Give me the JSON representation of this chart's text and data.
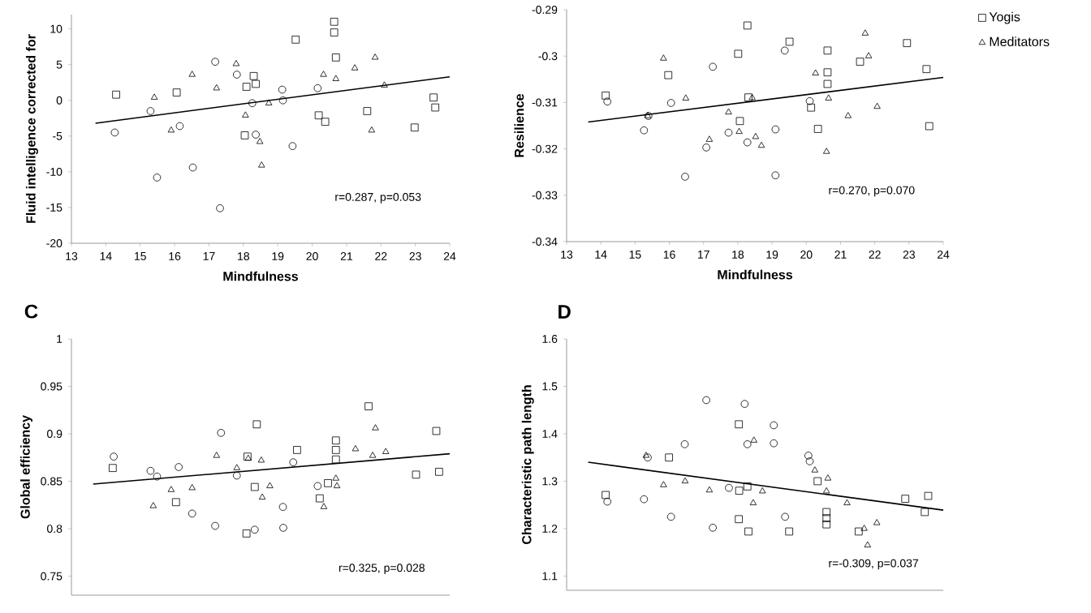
{
  "chart_data": [
    {
      "type": "scatter",
      "xlabel": "Mindfulness",
      "ylabel": "Fluid intelligence corrected for",
      "xlim": [
        13,
        24
      ],
      "ylim": [
        -20,
        12
      ],
      "xticks": [
        13,
        14,
        15,
        16,
        17,
        18,
        19,
        20,
        21,
        22,
        23,
        24
      ],
      "yticks": [
        -20,
        -15,
        -10,
        -5,
        0,
        5,
        10
      ],
      "annotations": [
        "r=0.287, p=0.053"
      ],
      "series": [
        {
          "marker": "square",
          "color": "#000000",
          "x": [
            14.3,
            16.06,
            19.52,
            20.64,
            20.64,
            20.69,
            18.3,
            18.36,
            18.09,
            18.04,
            20.19,
            20.38,
            21.6,
            22.98,
            23.53,
            23.58
          ],
          "values": [
            0.8,
            1.1,
            8.5,
            11,
            9.5,
            6,
            3.4,
            2.3,
            1.9,
            -4.9,
            -2.1,
            -3.0,
            -1.5,
            -3.8,
            0.4,
            -1.0
          ]
        },
        {
          "marker": "triangle",
          "color": "#000000",
          "x": [
            15.41,
            15.9,
            16.51,
            17.22,
            17.79,
            18.06,
            18.74,
            18.48,
            18.53,
            20.33,
            20.69,
            21.24,
            21.83,
            21.73,
            22.1
          ],
          "values": [
            0.4,
            -4.2,
            3.6,
            1.7,
            5.1,
            -2.1,
            -0.4,
            -5.8,
            -9.1,
            3.6,
            3.0,
            4.5,
            6.0,
            -4.2,
            2.1
          ]
        },
        {
          "marker": "circle",
          "color": "#000000",
          "x": [
            14.26,
            15.3,
            15.49,
            16.15,
            16.53,
            17.18,
            17.32,
            17.81,
            18.26,
            18.36,
            19.13,
            19.15,
            19.43,
            20.16
          ],
          "values": [
            -4.5,
            -1.5,
            -10.8,
            -3.6,
            -9.4,
            5.4,
            -15.1,
            3.6,
            -0.4,
            -4.8,
            1.5,
            0,
            -6.4,
            1.7
          ]
        },
        {
          "type": "line",
          "marker": "none",
          "line_style": "solid",
          "color": "#000000",
          "x": [
            13.7,
            24
          ],
          "values": [
            -3.2,
            3.3
          ]
        }
      ]
    },
    {
      "type": "scatter",
      "xlabel": "Mindfulness",
      "ylabel": "Resilience",
      "xlim": [
        13,
        24
      ],
      "ylim": [
        -0.34,
        -0.29
      ],
      "xticks": [
        13,
        14,
        15,
        16,
        17,
        18,
        19,
        20,
        21,
        22,
        23,
        24
      ],
      "yticks": [
        -0.34,
        -0.33,
        -0.32,
        -0.31,
        -0.3,
        -0.29
      ],
      "annotations": [
        "r=0.270, p=0.070"
      ],
      "legend": "right",
      "series": [
        {
          "name": "Yogis",
          "marker": "square",
          "color": "#000000",
          "x": [
            14.14,
            15.97,
            18.01,
            18.28,
            19.51,
            20.62,
            20.62,
            20.62,
            21.57,
            22.94,
            23.51,
            23.59,
            18.06,
            18.31,
            20.14,
            20.34
          ],
          "values": [
            -0.3085,
            -0.3041,
            -0.2995,
            -0.2934,
            -0.2969,
            -0.2988,
            -0.3035,
            -0.306,
            -0.3012,
            -0.2972,
            -0.3028,
            -0.3151,
            -0.314,
            -0.3089,
            -0.3111,
            -0.3157
          ]
        },
        {
          "name": "Meditators",
          "marker": "triangle",
          "color": "#000000",
          "x": [
            15.83,
            16.48,
            15.37,
            17.17,
            17.73,
            18.04,
            18.42,
            18.52,
            18.69,
            20.27,
            20.65,
            20.59,
            21.22,
            21.72,
            21.82,
            22.07
          ],
          "values": [
            -0.3005,
            -0.3091,
            -0.3129,
            -0.318,
            -0.3121,
            -0.3163,
            -0.309,
            -0.3174,
            -0.3193,
            -0.3037,
            -0.3091,
            -0.3206,
            -0.3129,
            -0.2951,
            -0.3,
            -0.3109
          ]
        },
        {
          "marker": "circle",
          "color": "#000000",
          "x": [
            14.19,
            15.39,
            15.26,
            16.05,
            16.46,
            17.08,
            17.27,
            17.73,
            18.28,
            19.1,
            19.1,
            19.37,
            20.1
          ],
          "values": [
            -0.3098,
            -0.3129,
            -0.316,
            -0.3101,
            -0.326,
            -0.3197,
            -0.3023,
            -0.3165,
            -0.3186,
            -0.3158,
            -0.3257,
            -0.2988,
            -0.3097
          ]
        },
        {
          "type": "line",
          "marker": "none",
          "line_style": "solid",
          "color": "#000000",
          "x": [
            13.63,
            24
          ],
          "values": [
            -0.3142,
            -0.3046
          ]
        }
      ]
    },
    {
      "type": "scatter",
      "title": "C",
      "ylabel": "Global efficiency",
      "xlim": [
        13,
        24
      ],
      "ylim": [
        0.73,
        1
      ],
      "yticks": [
        0.75,
        0.8,
        0.85,
        0.9,
        0.95,
        1
      ],
      "tick_labels": "y",
      "annotations": [
        "r=0.325, p=0.028"
      ],
      "series": [
        {
          "marker": "square",
          "color": "#000000",
          "x": [
            14.2,
            16.04,
            18.09,
            18.12,
            18.39,
            18.33,
            19.56,
            20.22,
            20.46,
            20.69,
            20.69,
            20.69,
            21.64,
            23.02,
            23.61,
            23.69
          ],
          "values": [
            0.864,
            0.828,
            0.795,
            0.876,
            0.91,
            0.844,
            0.883,
            0.832,
            0.848,
            0.893,
            0.883,
            0.873,
            0.929,
            0.857,
            0.903,
            0.86
          ]
        },
        {
          "marker": "triangle",
          "color": "#000000",
          "x": [
            15.38,
            15.9,
            16.51,
            17.22,
            17.81,
            18.14,
            18.52,
            18.55,
            18.77,
            20.34,
            20.72,
            20.69,
            21.26,
            21.76,
            21.84,
            22.14
          ],
          "values": [
            0.824,
            0.841,
            0.843,
            0.877,
            0.864,
            0.874,
            0.872,
            0.833,
            0.845,
            0.823,
            0.845,
            0.853,
            0.884,
            0.877,
            0.906,
            0.881
          ]
        },
        {
          "marker": "circle",
          "color": "#000000",
          "x": [
            14.23,
            15.3,
            15.49,
            16.12,
            16.51,
            17.18,
            17.35,
            17.81,
            18.33,
            19.15,
            19.16,
            19.45,
            20.16
          ],
          "values": [
            0.876,
            0.861,
            0.855,
            0.865,
            0.816,
            0.803,
            0.901,
            0.856,
            0.799,
            0.823,
            0.801,
            0.87,
            0.845
          ]
        },
        {
          "type": "line",
          "marker": "none",
          "line_style": "solid",
          "color": "#000000",
          "x": [
            13.63,
            24
          ],
          "values": [
            0.847,
            0.879
          ]
        }
      ]
    },
    {
      "type": "scatter",
      "title": "D",
      "ylabel": "Characteristic  path length",
      "xlim": [
        13,
        24
      ],
      "ylim": [
        1.07,
        1.6
      ],
      "yticks": [
        1.1,
        1.2,
        1.3,
        1.4,
        1.5,
        1.6
      ],
      "tick_labels": "y",
      "annotations": [
        "r=-0.309, p=0.037"
      ],
      "series": [
        {
          "marker": "square",
          "color": "#000000",
          "x": [
            14.14,
            15.99,
            18.03,
            18.28,
            18.03,
            18.31,
            19.5,
            20.33,
            20.59,
            20.59,
            20.59,
            21.53,
            22.89,
            23.56,
            23.46,
            18.04
          ],
          "values": [
            1.271,
            1.35,
            1.42,
            1.289,
            1.22,
            1.194,
            1.194,
            1.3,
            1.235,
            1.222,
            1.209,
            1.194,
            1.263,
            1.269,
            1.235,
            1.28
          ]
        },
        {
          "marker": "triangle",
          "color": "#000000",
          "x": [
            15.32,
            15.83,
            16.46,
            17.17,
            18.47,
            18.45,
            18.72,
            20.25,
            20.63,
            20.59,
            21.19,
            21.69,
            21.79,
            22.06
          ],
          "values": [
            1.354,
            1.292,
            1.3,
            1.281,
            1.386,
            1.254,
            1.279,
            1.323,
            1.306,
            1.279,
            1.254,
            1.2,
            1.165,
            1.212
          ]
        },
        {
          "marker": "circle",
          "color": "#000000",
          "x": [
            14.19,
            15.37,
            15.26,
            16.05,
            16.45,
            17.08,
            17.27,
            17.74,
            18.2,
            18.28,
            19.05,
            19.05,
            19.38,
            20.06,
            20.1
          ],
          "values": [
            1.257,
            1.35,
            1.262,
            1.225,
            1.378,
            1.471,
            1.202,
            1.286,
            1.463,
            1.378,
            1.418,
            1.38,
            1.225,
            1.354,
            1.342
          ]
        },
        {
          "type": "line",
          "marker": "none",
          "line_style": "solid",
          "color": "#000000",
          "x": [
            13.63,
            24
          ],
          "values": [
            1.34,
            1.239
          ]
        }
      ]
    }
  ]
}
